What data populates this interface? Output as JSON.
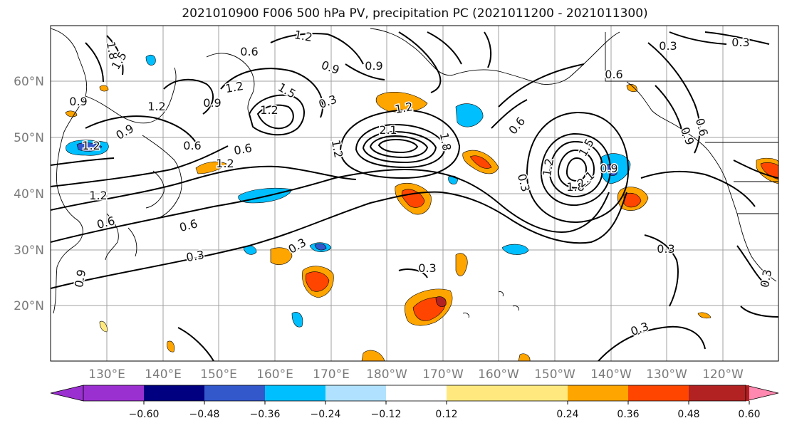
{
  "title": "2021010900 F006 500 hPa PV, precipitation PC (2021011200 - 2021011300)",
  "map": {
    "lat_labels": [
      "60°N",
      "50°N",
      "40°N",
      "30°N",
      "20°N"
    ],
    "lon_labels": [
      "130°E",
      "140°E",
      "150°E",
      "160°E",
      "170°E",
      "180°W",
      "170°W",
      "160°W",
      "150°W",
      "140°W",
      "130°W",
      "120°W"
    ],
    "contour_labels": [
      "1.8",
      "1.5",
      "1.2",
      "0.6",
      "1.2",
      "0.9",
      "0.9",
      "0.9",
      "1.2",
      "0.3",
      "0.6",
      "0.9",
      "0.3",
      "1.2",
      "0.6",
      "0.9",
      "1.2",
      "1.5",
      "1.2",
      "2.1",
      "1.2",
      "1.8",
      "0.6",
      "1.2",
      "1.2",
      "0.6",
      "0.9",
      "0.3",
      "0.3",
      "0.6",
      "0.3",
      "0.3",
      "1.2",
      "1.5",
      "1.8",
      "2.1",
      "0.9",
      "0.3",
      "0.3",
      "0.3",
      "0.9",
      "0.6",
      "0.3",
      "0.6"
    ]
  },
  "colorbar": {
    "tick_labels": [
      "−0.60",
      "−0.48",
      "−0.36",
      "−0.24",
      "−0.12",
      "0.12",
      "0.24",
      "0.36",
      "0.48",
      "0.60"
    ],
    "colors": [
      "#9b30d0",
      "#000080",
      "#3358cc",
      "#00bfff",
      "#b0e2ff",
      "#ffffff",
      "#ffe97f",
      "#ffa500",
      "#ff4500",
      "#b22222",
      "#ff88b0"
    ]
  },
  "colors": {
    "land_outline": "#000000",
    "contour": "#000000",
    "grid": "#a0a0a0"
  }
}
